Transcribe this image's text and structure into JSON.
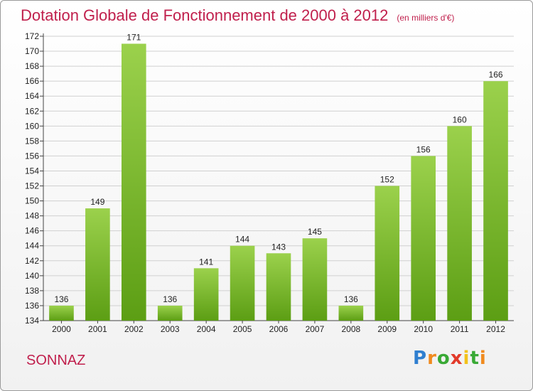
{
  "title": "Dotation Globale de Fonctionnement de 2000 à 2012",
  "subtitle": "(en milliers d'€)",
  "city": "SONNAZ",
  "logo_text": "Proxiti",
  "colors": {
    "title": "#c01f4c",
    "bar_light": "#9bd14c",
    "bar_dark": "#5c9e14",
    "grid": "#d0d0d0"
  },
  "chart_data": {
    "type": "bar",
    "title": "Dotation Globale de Fonctionnement de 2000 à 2012",
    "subtitle": "(en milliers d'€)",
    "categories": [
      "2000",
      "2001",
      "2002",
      "2003",
      "2004",
      "2005",
      "2006",
      "2007",
      "2008",
      "2009",
      "2010",
      "2011",
      "2012"
    ],
    "values": [
      136,
      149,
      171,
      136,
      141,
      144,
      143,
      145,
      136,
      152,
      156,
      160,
      166
    ],
    "ylim": [
      134,
      172
    ],
    "yticks": [
      134,
      136,
      138,
      140,
      142,
      144,
      146,
      148,
      150,
      152,
      154,
      156,
      158,
      160,
      162,
      164,
      166,
      168,
      170,
      172
    ],
    "grid": true,
    "data_labels": true
  }
}
